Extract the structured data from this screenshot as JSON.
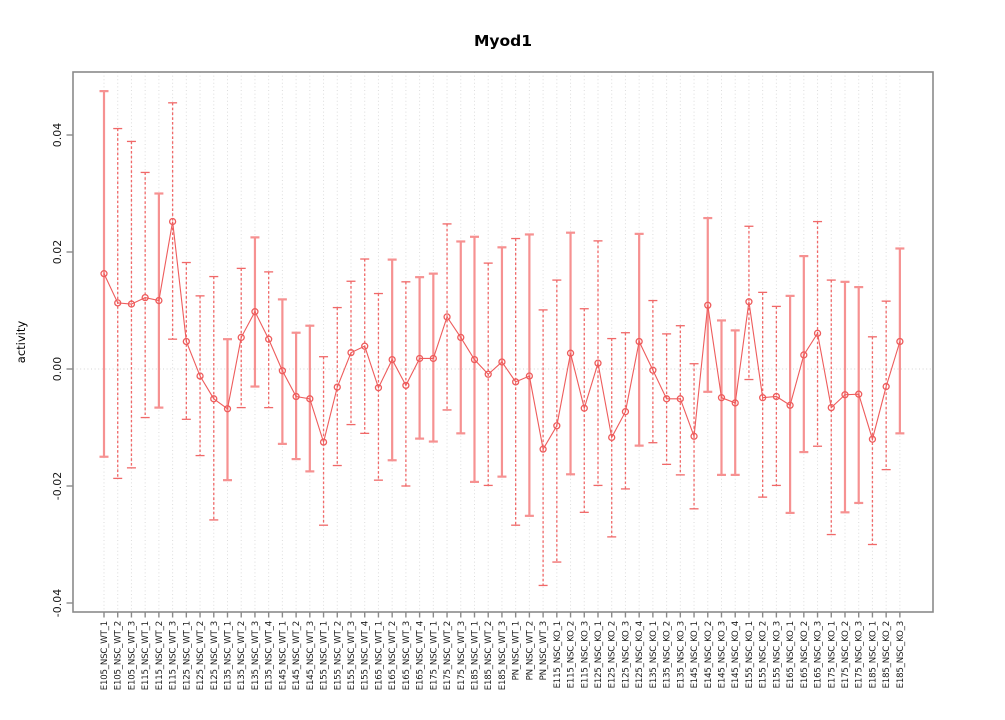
{
  "page": {
    "background": "#ffffff"
  },
  "chart_data": {
    "type": "line",
    "title": "Myod1",
    "xlabel": "",
    "ylabel": "activity",
    "legend": "none",
    "grid": "vertical-dotted-per-category",
    "zero_reference_line": true,
    "ylim": [
      -0.0415,
      0.0508
    ],
    "yticks": [
      -0.04,
      -0.02,
      0,
      0.02,
      0.04
    ],
    "ytick_labels": [
      "-0.04",
      "-0.02",
      "0.00",
      "0.02",
      "0.04"
    ],
    "marker": "open-circle",
    "error_bars": "capped-whiskers",
    "categories": [
      "E105_NSC_WT_1",
      "E105_NSC_WT_2",
      "E105_NSC_WT_3",
      "E115_NSC_WT_1",
      "E115_NSC_WT_2",
      "E115_NSC_WT_3",
      "E125_NSC_WT_1",
      "E125_NSC_WT_2",
      "E125_NSC_WT_3",
      "E135_NSC_WT_1",
      "E135_NSC_WT_2",
      "E135_NSC_WT_3",
      "E135_NSC_WT_4",
      "E145_NSC_WT_1",
      "E145_NSC_WT_2",
      "E145_NSC_WT_3",
      "E155_NSC_WT_1",
      "E155_NSC_WT_2",
      "E155_NSC_WT_3",
      "E155_NSC_WT_4",
      "E165_NSC_WT_1",
      "E165_NSC_WT_2",
      "E165_NSC_WT_3",
      "E165_NSC_WT_4",
      "E175_NSC_WT_1",
      "E175_NSC_WT_2",
      "E175_NSC_WT_3",
      "E185_NSC_WT_1",
      "E185_NSC_WT_2",
      "E185_NSC_WT_3",
      "PN_NSC_WT_1",
      "PN_NSC_WT_2",
      "PN_NSC_WT_3",
      "E115_NSC_KO_1",
      "E115_NSC_KO_2",
      "E115_NSC_KO_3",
      "E125_NSC_KO_1",
      "E125_NSC_KO_2",
      "E125_NSC_KO_3",
      "E125_NSC_KO_4",
      "E135_NSC_KO_1",
      "E135_NSC_KO_2",
      "E135_NSC_KO_3",
      "E145_NSC_KO_1",
      "E145_NSC_KO_2",
      "E145_NSC_KO_3",
      "E145_NSC_KO_4",
      "E155_NSC_KO_1",
      "E155_NSC_KO_2",
      "E155_NSC_KO_3",
      "E165_NSC_KO_1",
      "E165_NSC_KO_2",
      "E165_NSC_KO_3",
      "E175_NSC_KO_1",
      "E175_NSC_KO_2",
      "E175_NSC_KO_3",
      "E185_NSC_KO_1",
      "E185_NSC_KO_2",
      "E185_NSC_KO_3"
    ],
    "series": [
      {
        "name": "activity",
        "values": [
          0.0163,
          0.0113,
          0.0111,
          0.0122,
          0.0117,
          0.0252,
          0.0047,
          -0.0012,
          -0.0051,
          -0.0068,
          0.0054,
          0.0098,
          0.0051,
          -0.0003,
          -0.0047,
          -0.0051,
          -0.0125,
          -0.0031,
          0.0028,
          0.0039,
          -0.0032,
          0.0016,
          -0.0028,
          0.0018,
          0.0018,
          0.0089,
          0.0054,
          0.0016,
          -0.0009,
          0.0012,
          -0.0022,
          -0.0012,
          -0.0137,
          -0.0097,
          0.0027,
          -0.0067,
          0.001,
          -0.0117,
          -0.0073,
          0.0047,
          -0.0002,
          -0.0051,
          -0.0051,
          -0.0115,
          0.0109,
          -0.0049,
          -0.0058,
          0.0115,
          -0.0049,
          -0.0047,
          -0.0062,
          0.0024,
          0.0061,
          -0.0066,
          -0.0044,
          -0.0043,
          -0.012,
          -0.003,
          0.0047
        ],
        "err_hi": [
          0.0475,
          0.0411,
          0.0389,
          0.0336,
          0.03,
          0.0455,
          0.0182,
          0.0125,
          0.0158,
          0.0051,
          0.0172,
          0.0225,
          0.0166,
          0.0119,
          0.0062,
          0.0074,
          0.0021,
          0.0105,
          0.015,
          0.0188,
          0.0129,
          0.0187,
          0.0149,
          0.0157,
          0.0163,
          0.0248,
          0.0218,
          0.0226,
          0.0181,
          0.0208,
          0.0223,
          0.023,
          0.0101,
          0.0152,
          0.0233,
          0.0103,
          0.0219,
          0.0052,
          0.0062,
          0.0231,
          0.0117,
          0.006,
          0.0074,
          0.0009,
          0.0258,
          0.0083,
          0.0066,
          0.0244,
          0.0131,
          0.0107,
          0.0125,
          0.0193,
          0.0252,
          0.0152,
          0.0149,
          0.014,
          0.0055,
          0.0116,
          0.0206
        ],
        "err_lo": [
          -0.015,
          -0.0187,
          -0.0169,
          -0.0083,
          -0.0066,
          0.0051,
          -0.0086,
          -0.0148,
          -0.0258,
          -0.019,
          -0.0066,
          -0.003,
          -0.0066,
          -0.0128,
          -0.0154,
          -0.0175,
          -0.0267,
          -0.0165,
          -0.0095,
          -0.011,
          -0.019,
          -0.0156,
          -0.02,
          -0.0119,
          -0.0124,
          -0.007,
          -0.011,
          -0.0193,
          -0.0199,
          -0.0184,
          -0.0267,
          -0.0251,
          -0.037,
          -0.033,
          -0.018,
          -0.0245,
          -0.0199,
          -0.0287,
          -0.0205,
          -0.0131,
          -0.0126,
          -0.0163,
          -0.0181,
          -0.0239,
          -0.0039,
          -0.0181,
          -0.0181,
          -0.0018,
          -0.0219,
          -0.0199,
          -0.0246,
          -0.0142,
          -0.0132,
          -0.0283,
          -0.0245,
          -0.0229,
          -0.03,
          -0.0172,
          -0.011
        ],
        "bar_styles": [
          "s",
          "d",
          "d",
          "d",
          "s",
          "d",
          "d",
          "d",
          "d",
          "s",
          "d",
          "s",
          "d",
          "s",
          "s",
          "s",
          "d",
          "d",
          "d",
          "d",
          "d",
          "s",
          "d",
          "s",
          "s",
          "d",
          "s",
          "s",
          "d",
          "s",
          "d",
          "s",
          "d",
          "d",
          "s",
          "d",
          "d",
          "d",
          "d",
          "s",
          "d",
          "d",
          "d",
          "d",
          "s",
          "s",
          "s",
          "d",
          "d",
          "d",
          "s",
          "s",
          "d",
          "d",
          "s",
          "s",
          "d",
          "d",
          "s"
        ]
      }
    ],
    "colors": {
      "point": "#ee5c5c",
      "line": "#ee5c5c",
      "error_bar_solid": "#f69191",
      "error_bar_dashed": "#f06868",
      "gridline": "#dcdcdc",
      "zero_line": "#d4d4d4",
      "axis_box": "#8a8a8a",
      "tick": "#8a8a8a",
      "text": "#000000"
    }
  }
}
